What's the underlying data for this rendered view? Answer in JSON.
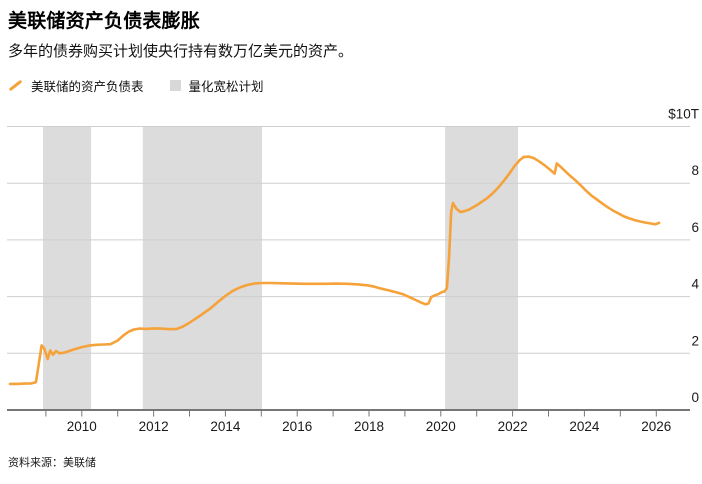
{
  "header": {
    "title": "美联储资产负债表膨胀",
    "subtitle": "多年的债券购买计划使央行持有数万亿美元的资产。"
  },
  "legend": {
    "items": [
      {
        "label": "美联储的资产负债表",
        "marker": "line",
        "color": "#F6A23A"
      },
      {
        "label": "量化宽松计划",
        "marker": "square",
        "color": "#D8D8D8"
      }
    ]
  },
  "footer": {
    "source_label": "资料来源：美联储"
  },
  "chart_data": {
    "type": "line",
    "title": "美联储资产负债表膨胀",
    "xlabel": "",
    "ylabel": "$T",
    "xlim": [
      2008,
      2026.94
    ],
    "ylim": [
      0,
      10
    ],
    "grid": true,
    "legend_position": "top-left",
    "colors": {
      "line": "#F6A23A",
      "band": "#DCDCDC",
      "grid": "#CFCFCF",
      "axis": "#767676",
      "label": "#1a1a1a"
    },
    "y_ticks": [
      {
        "value": 10,
        "label": "$10T"
      },
      {
        "value": 8,
        "label": "8"
      },
      {
        "value": 6,
        "label": "6"
      },
      {
        "value": 4,
        "label": "4"
      },
      {
        "value": 2,
        "label": "2"
      },
      {
        "value": 0,
        "label": "0"
      }
    ],
    "x_minor_tick_years": [
      2009,
      2010,
      2011,
      2012,
      2013,
      2014,
      2015,
      2016,
      2017,
      2018,
      2019,
      2020,
      2021,
      2022,
      2023,
      2024,
      2025,
      2026
    ],
    "x_label_years": [
      2010,
      2012,
      2014,
      2016,
      2018,
      2020,
      2022,
      2024,
      2026
    ],
    "bands": {
      "name": "量化宽松计划",
      "year_ranges": [
        [
          2008.92,
          2010.26
        ],
        [
          2011.7,
          2015.02
        ],
        [
          2020.12,
          2022.15
        ]
      ]
    },
    "series": [
      {
        "name": "美联储的资产负债表",
        "unit": "$T",
        "points": [
          [
            2008.0,
            0.92
          ],
          [
            2008.2,
            0.92
          ],
          [
            2008.4,
            0.93
          ],
          [
            2008.6,
            0.94
          ],
          [
            2008.72,
            0.98
          ],
          [
            2008.8,
            1.6
          ],
          [
            2008.88,
            2.28
          ],
          [
            2008.95,
            2.18
          ],
          [
            2009.05,
            1.8
          ],
          [
            2009.12,
            2.1
          ],
          [
            2009.2,
            1.95
          ],
          [
            2009.28,
            2.08
          ],
          [
            2009.38,
            2.0
          ],
          [
            2009.5,
            2.02
          ],
          [
            2009.65,
            2.08
          ],
          [
            2009.8,
            2.14
          ],
          [
            2010.0,
            2.22
          ],
          [
            2010.2,
            2.27
          ],
          [
            2010.4,
            2.3
          ],
          [
            2010.6,
            2.31
          ],
          [
            2010.8,
            2.32
          ],
          [
            2011.0,
            2.45
          ],
          [
            2011.15,
            2.62
          ],
          [
            2011.3,
            2.76
          ],
          [
            2011.45,
            2.84
          ],
          [
            2011.6,
            2.87
          ],
          [
            2011.8,
            2.86
          ],
          [
            2012.0,
            2.88
          ],
          [
            2012.2,
            2.87
          ],
          [
            2012.45,
            2.85
          ],
          [
            2012.65,
            2.86
          ],
          [
            2012.8,
            2.93
          ],
          [
            2013.0,
            3.08
          ],
          [
            2013.2,
            3.25
          ],
          [
            2013.4,
            3.42
          ],
          [
            2013.6,
            3.6
          ],
          [
            2013.8,
            3.82
          ],
          [
            2014.0,
            4.02
          ],
          [
            2014.2,
            4.2
          ],
          [
            2014.4,
            4.32
          ],
          [
            2014.6,
            4.41
          ],
          [
            2014.8,
            4.46
          ],
          [
            2015.0,
            4.48
          ],
          [
            2015.3,
            4.48
          ],
          [
            2015.6,
            4.47
          ],
          [
            2015.9,
            4.46
          ],
          [
            2016.2,
            4.45
          ],
          [
            2016.5,
            4.45
          ],
          [
            2016.8,
            4.45
          ],
          [
            2017.1,
            4.46
          ],
          [
            2017.4,
            4.45
          ],
          [
            2017.7,
            4.43
          ],
          [
            2017.95,
            4.4
          ],
          [
            2018.15,
            4.35
          ],
          [
            2018.35,
            4.28
          ],
          [
            2018.55,
            4.22
          ],
          [
            2018.75,
            4.15
          ],
          [
            2018.95,
            4.08
          ],
          [
            2019.15,
            3.97
          ],
          [
            2019.3,
            3.88
          ],
          [
            2019.45,
            3.79
          ],
          [
            2019.58,
            3.73
          ],
          [
            2019.66,
            3.76
          ],
          [
            2019.73,
            3.98
          ],
          [
            2019.82,
            4.04
          ],
          [
            2019.92,
            4.08
          ],
          [
            2020.02,
            4.15
          ],
          [
            2020.1,
            4.18
          ],
          [
            2020.17,
            4.3
          ],
          [
            2020.23,
            5.4
          ],
          [
            2020.29,
            7.0
          ],
          [
            2020.34,
            7.3
          ],
          [
            2020.43,
            7.1
          ],
          [
            2020.55,
            6.98
          ],
          [
            2020.67,
            7.02
          ],
          [
            2020.8,
            7.08
          ],
          [
            2021.0,
            7.22
          ],
          [
            2021.15,
            7.35
          ],
          [
            2021.3,
            7.48
          ],
          [
            2021.45,
            7.65
          ],
          [
            2021.6,
            7.85
          ],
          [
            2021.75,
            8.08
          ],
          [
            2021.9,
            8.32
          ],
          [
            2022.05,
            8.6
          ],
          [
            2022.2,
            8.82
          ],
          [
            2022.3,
            8.92
          ],
          [
            2022.45,
            8.94
          ],
          [
            2022.6,
            8.88
          ],
          [
            2022.75,
            8.76
          ],
          [
            2022.9,
            8.62
          ],
          [
            2023.05,
            8.47
          ],
          [
            2023.17,
            8.34
          ],
          [
            2023.23,
            8.7
          ],
          [
            2023.32,
            8.6
          ],
          [
            2023.45,
            8.44
          ],
          [
            2023.6,
            8.26
          ],
          [
            2023.75,
            8.1
          ],
          [
            2023.9,
            7.92
          ],
          [
            2024.05,
            7.73
          ],
          [
            2024.2,
            7.56
          ],
          [
            2024.35,
            7.42
          ],
          [
            2024.5,
            7.28
          ],
          [
            2024.65,
            7.15
          ],
          [
            2024.8,
            7.03
          ],
          [
            2024.95,
            6.93
          ],
          [
            2025.1,
            6.83
          ],
          [
            2025.25,
            6.76
          ],
          [
            2025.4,
            6.7
          ],
          [
            2025.55,
            6.65
          ],
          [
            2025.7,
            6.61
          ],
          [
            2025.85,
            6.58
          ],
          [
            2025.97,
            6.55
          ],
          [
            2026.08,
            6.6
          ]
        ]
      }
    ]
  }
}
